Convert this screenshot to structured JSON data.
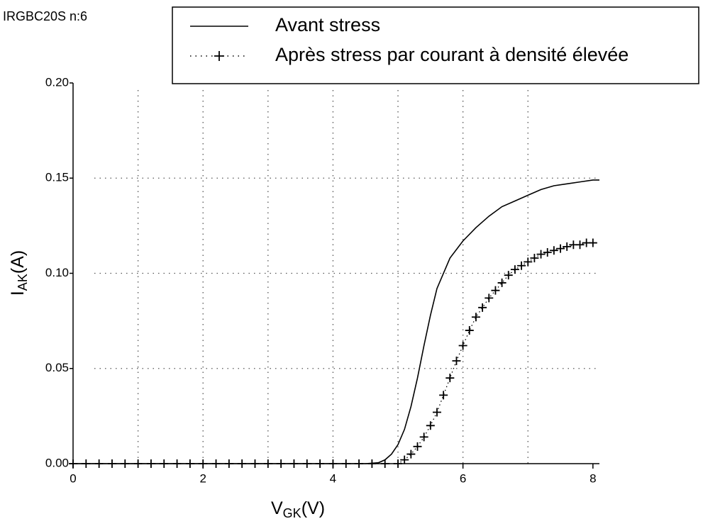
{
  "chart_data": {
    "type": "line",
    "title": "IRGBC20S n:6",
    "x_label": {
      "main": "V",
      "sub": "GK",
      "unit": "(V)"
    },
    "y_label": {
      "main": "I",
      "sub": "AK",
      "unit": "(A)"
    },
    "xlim": [
      0,
      8.1
    ],
    "ylim": [
      0,
      0.2
    ],
    "xticks": [
      0,
      2,
      4,
      6,
      8
    ],
    "xgrid": [
      1,
      2,
      3,
      4,
      5,
      6,
      7
    ],
    "yticks": [
      {
        "value": 0,
        "label": "0.00"
      },
      {
        "value": 0.05,
        "label": "0.05"
      },
      {
        "value": 0.1,
        "label": "0.10"
      },
      {
        "value": 0.15,
        "label": "0.15"
      },
      {
        "value": 0.2,
        "label": "0.20"
      }
    ],
    "grid": true,
    "legend": "top-right",
    "series": [
      {
        "name": "Avant stress",
        "color": "#000000",
        "style": "solid",
        "x": [
          0,
          1,
          2,
          3,
          4,
          4.5,
          4.7,
          4.8,
          4.9,
          5.0,
          5.1,
          5.2,
          5.3,
          5.4,
          5.5,
          5.6,
          5.8,
          6.0,
          6.2,
          6.4,
          6.6,
          6.8,
          7.0,
          7.2,
          7.4,
          7.6,
          7.8,
          8.0,
          8.1
        ],
        "values": [
          0,
          0,
          0,
          0,
          0,
          0,
          0.0005,
          0.002,
          0.005,
          0.01,
          0.018,
          0.03,
          0.045,
          0.062,
          0.078,
          0.092,
          0.108,
          0.117,
          0.124,
          0.13,
          0.135,
          0.138,
          0.141,
          0.144,
          0.146,
          0.147,
          0.148,
          0.149,
          0.149
        ]
      },
      {
        "name": "Après stress par courant à densité élevée",
        "color": "#000000",
        "style": "dotted-plus",
        "x": [
          0,
          0.2,
          0.4,
          0.6,
          0.8,
          1.0,
          1.2,
          1.4,
          1.6,
          1.8,
          2.0,
          2.2,
          2.4,
          2.6,
          2.8,
          3.0,
          3.2,
          3.4,
          3.6,
          3.8,
          4.0,
          4.2,
          4.4,
          4.6,
          4.8,
          5.0,
          5.1,
          5.2,
          5.3,
          5.4,
          5.5,
          5.6,
          5.7,
          5.8,
          5.9,
          6.0,
          6.1,
          6.2,
          6.3,
          6.4,
          6.5,
          6.6,
          6.7,
          6.8,
          6.9,
          7.0,
          7.1,
          7.2,
          7.3,
          7.4,
          7.5,
          7.6,
          7.7,
          7.8,
          7.9,
          8.0
        ],
        "values": [
          0,
          0,
          0,
          0,
          0,
          0,
          0,
          0,
          0,
          0,
          0,
          0,
          0,
          0,
          0,
          0,
          0,
          0,
          0,
          0,
          0,
          0,
          0,
          0,
          0,
          0,
          0.002,
          0.005,
          0.009,
          0.014,
          0.02,
          0.027,
          0.036,
          0.045,
          0.054,
          0.062,
          0.07,
          0.077,
          0.082,
          0.087,
          0.091,
          0.095,
          0.099,
          0.102,
          0.104,
          0.106,
          0.108,
          0.11,
          0.111,
          0.112,
          0.113,
          0.114,
          0.115,
          0.115,
          0.116,
          0.116
        ]
      }
    ]
  }
}
